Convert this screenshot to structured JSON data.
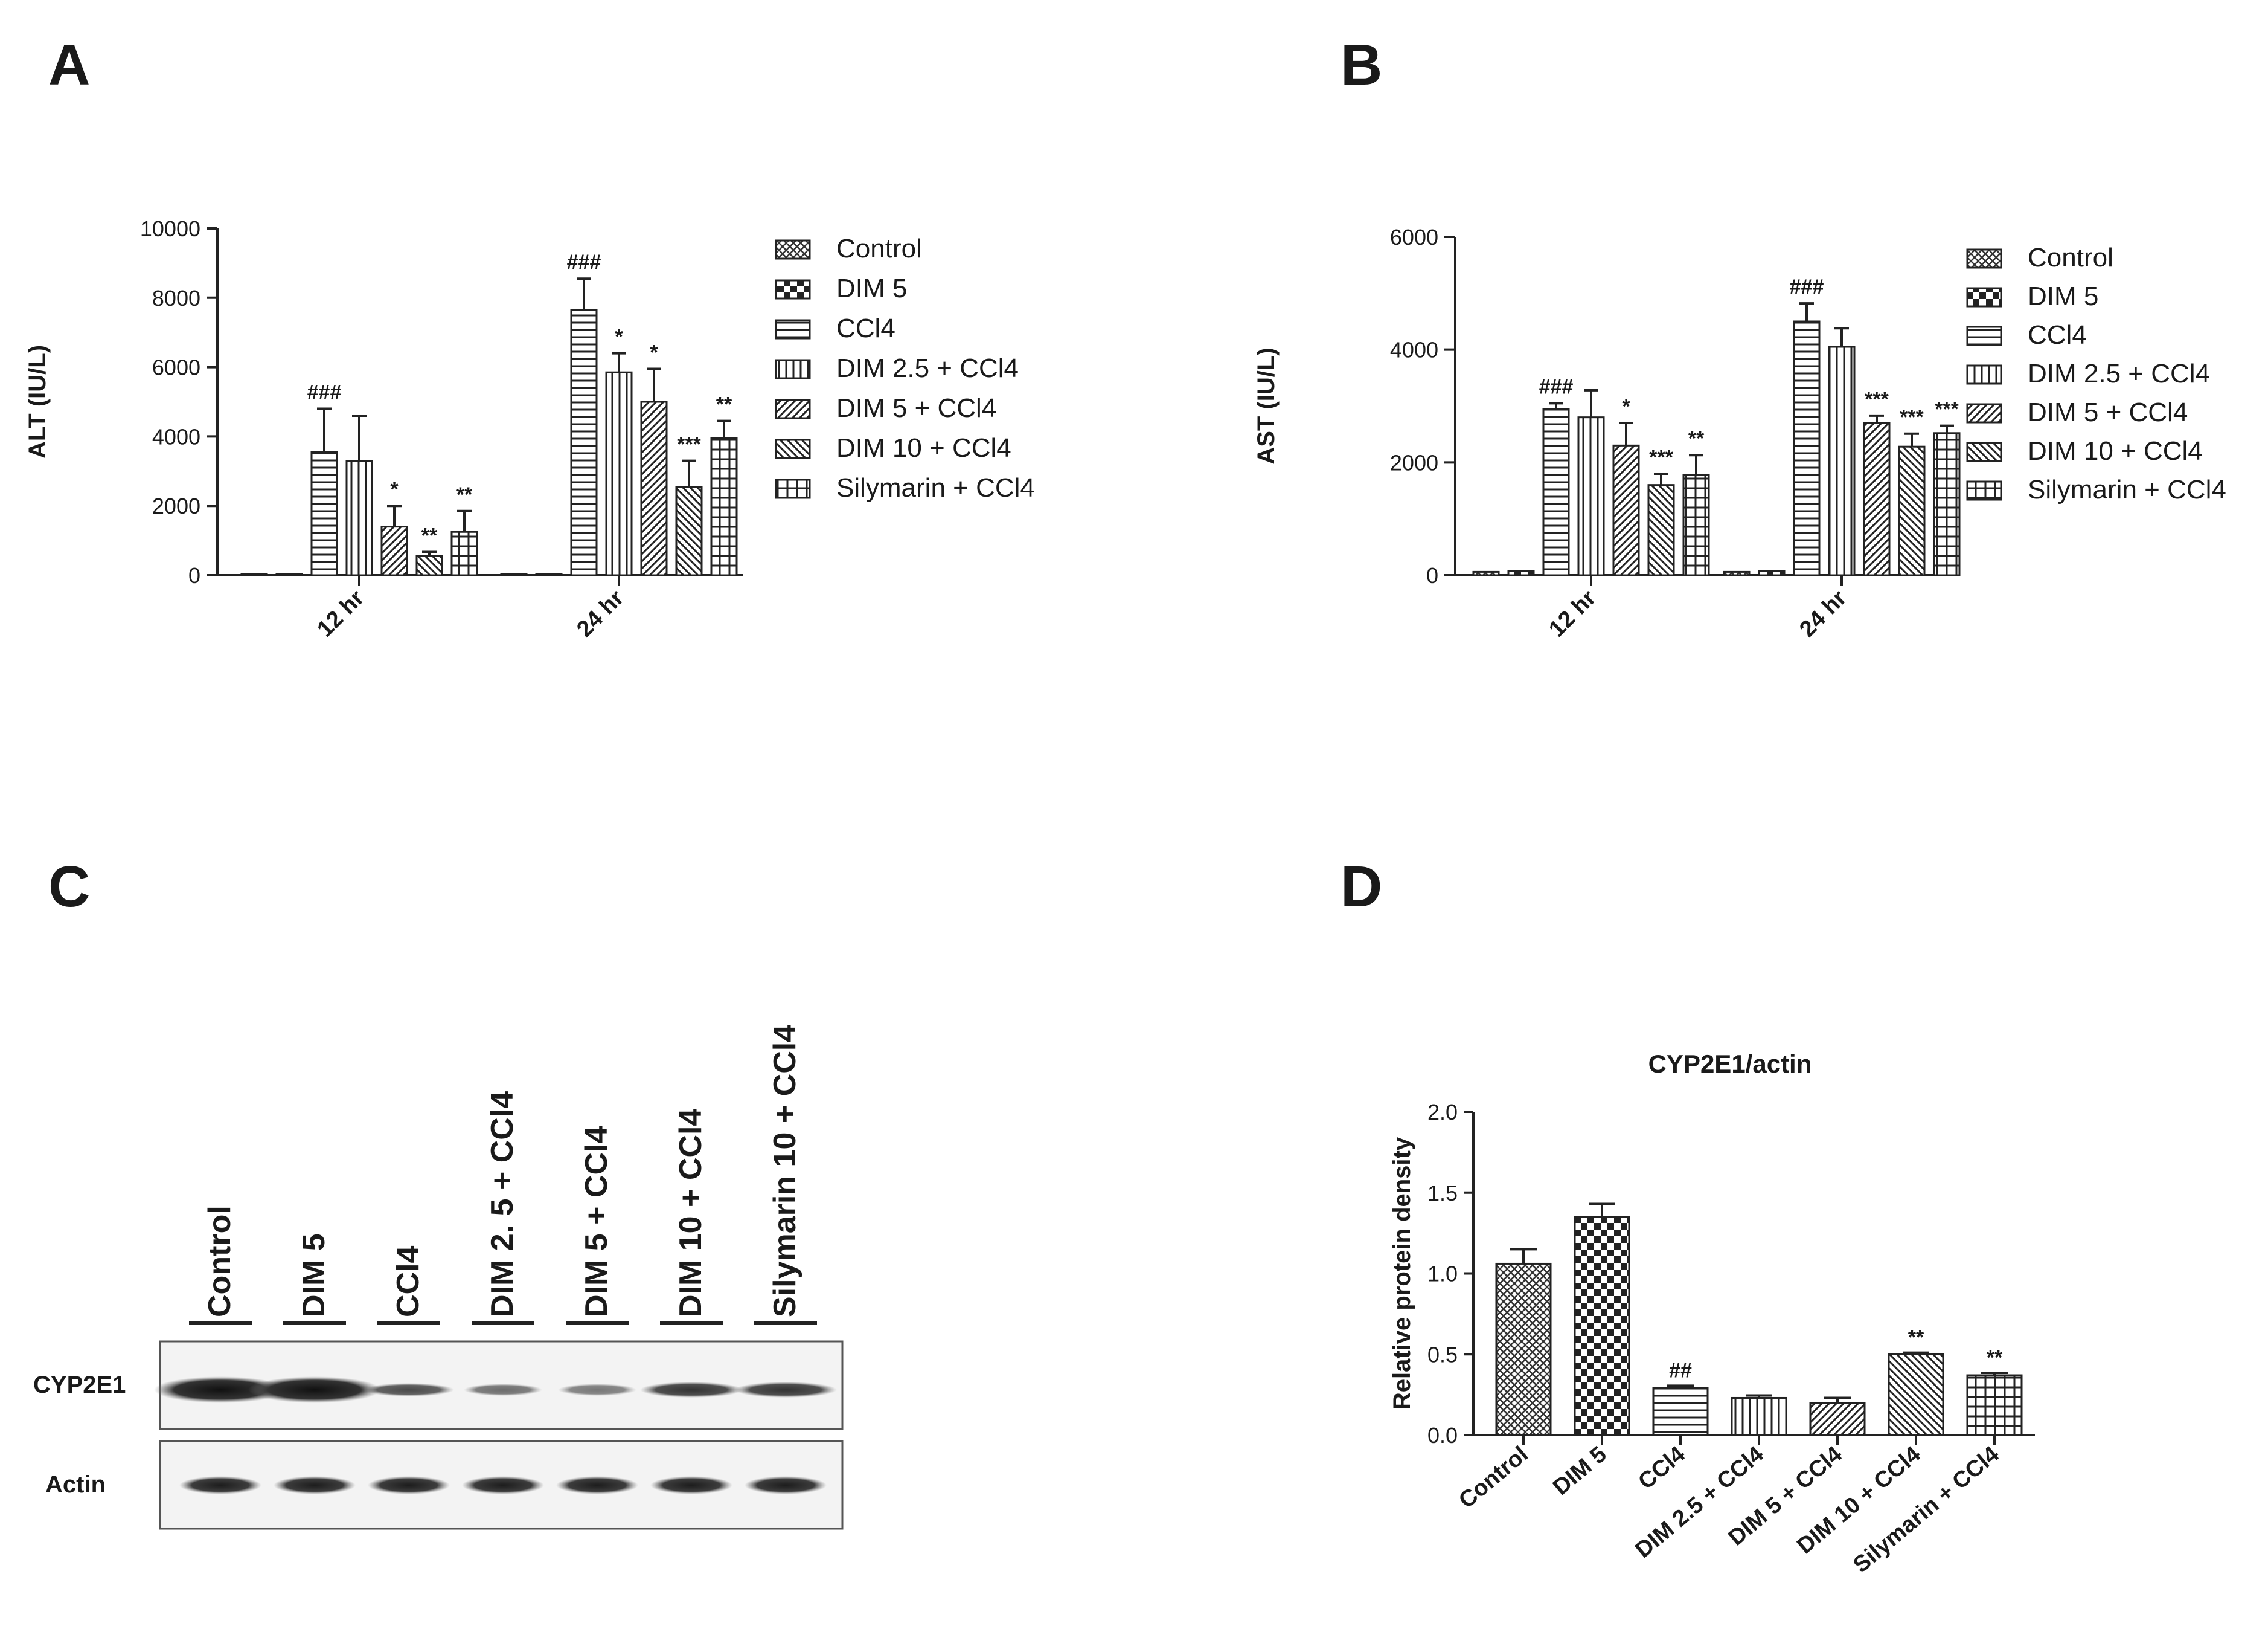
{
  "panels": [
    "A",
    "B",
    "C",
    "D"
  ],
  "legend_items": [
    "Control",
    "DIM 5",
    "CCl4",
    "DIM 2.5 + CCl4",
    "DIM 5 + CCl4",
    "DIM 10 + CCl4",
    "Silymarin + CCl4"
  ],
  "chart_data": [
    {
      "type": "bar",
      "panel": "A",
      "ylabel": "ALT (IU/L)",
      "categories": [
        "12 hr",
        "24 hr"
      ],
      "ylim": [
        0,
        10000
      ],
      "yticks": [
        0,
        2000,
        4000,
        6000,
        8000,
        10000
      ],
      "series": [
        {
          "name": "Control",
          "values": [
            30,
            30
          ],
          "errors": [
            0,
            0
          ],
          "annotations": [
            "",
            ""
          ]
        },
        {
          "name": "DIM 5",
          "values": [
            30,
            30
          ],
          "errors": [
            0,
            0
          ],
          "annotations": [
            "",
            ""
          ]
        },
        {
          "name": "CCl4",
          "values": [
            3550,
            7650
          ],
          "errors": [
            1250,
            900
          ],
          "annotations": [
            "###",
            "###"
          ]
        },
        {
          "name": "DIM 2.5 + CCl4",
          "values": [
            3300,
            5850
          ],
          "errors": [
            1300,
            550
          ],
          "annotations": [
            "",
            "*"
          ]
        },
        {
          "name": "DIM 5 + CCl4",
          "values": [
            1400,
            5000
          ],
          "errors": [
            600,
            950
          ],
          "annotations": [
            "*",
            "*"
          ]
        },
        {
          "name": "DIM 10 + CCl4",
          "values": [
            550,
            2550
          ],
          "errors": [
            120,
            750
          ],
          "annotations": [
            "**",
            "***"
          ]
        },
        {
          "name": "Silymarin + CCl4",
          "values": [
            1250,
            3950
          ],
          "errors": [
            600,
            500
          ],
          "annotations": [
            "**",
            "**"
          ]
        }
      ]
    },
    {
      "type": "bar",
      "panel": "B",
      "ylabel": "AST (IU/L)",
      "categories": [
        "12 hr",
        "24 hr"
      ],
      "ylim": [
        0,
        6000
      ],
      "yticks": [
        0,
        2000,
        4000,
        6000
      ],
      "series": [
        {
          "name": "Control",
          "values": [
            60,
            60
          ],
          "errors": [
            0,
            0
          ],
          "annotations": [
            "",
            ""
          ]
        },
        {
          "name": "DIM 5",
          "values": [
            70,
            80
          ],
          "errors": [
            0,
            0
          ],
          "annotations": [
            "",
            ""
          ]
        },
        {
          "name": "CCl4",
          "values": [
            2950,
            4500
          ],
          "errors": [
            100,
            320
          ],
          "annotations": [
            "###",
            "###"
          ]
        },
        {
          "name": "DIM 2.5 + CCl4",
          "values": [
            2800,
            4050
          ],
          "errors": [
            480,
            330
          ],
          "annotations": [
            "",
            ""
          ]
        },
        {
          "name": "DIM 5 + CCl4",
          "values": [
            2300,
            2700
          ],
          "errors": [
            400,
            130
          ],
          "annotations": [
            "*",
            "***"
          ]
        },
        {
          "name": "DIM 10 + CCl4",
          "values": [
            1600,
            2280
          ],
          "errors": [
            200,
            230
          ],
          "annotations": [
            "***",
            "***"
          ]
        },
        {
          "name": "Silymarin + CCl4",
          "values": [
            1780,
            2520
          ],
          "errors": [
            350,
            130
          ],
          "annotations": [
            "**",
            "***"
          ]
        }
      ]
    },
    {
      "type": "bar",
      "panel": "D",
      "title": "CYP2E1/actin",
      "ylabel": "Relative protein density",
      "categories": [
        "Control",
        "DIM 5",
        "CCl4",
        "DIM 2.5 + CCl4",
        "DIM 5 + CCl4",
        "DIM 10 + CCl4",
        "Silymarin + CCl4"
      ],
      "ylim": [
        0,
        2.0
      ],
      "yticks": [
        "0.0",
        "0.5",
        "1.0",
        "1.5",
        "2.0"
      ],
      "values": [
        1.06,
        1.35,
        0.29,
        0.23,
        0.2,
        0.5,
        0.37
      ],
      "errors": [
        0.09,
        0.08,
        0.015,
        0.015,
        0.03,
        0.01,
        0.015
      ],
      "annotations": [
        "",
        "",
        "##",
        "",
        "",
        "**",
        "**"
      ]
    }
  ],
  "blot": {
    "lanes": [
      "Control",
      "DIM 5",
      "CCl4",
      "DIM 2. 5 + CCl4",
      "DIM 5 + CCl4",
      "DIM 10 + CCl4",
      "Silymarin 10 + CCl4"
    ],
    "rows": [
      "CYP2E1",
      "Actin"
    ]
  }
}
